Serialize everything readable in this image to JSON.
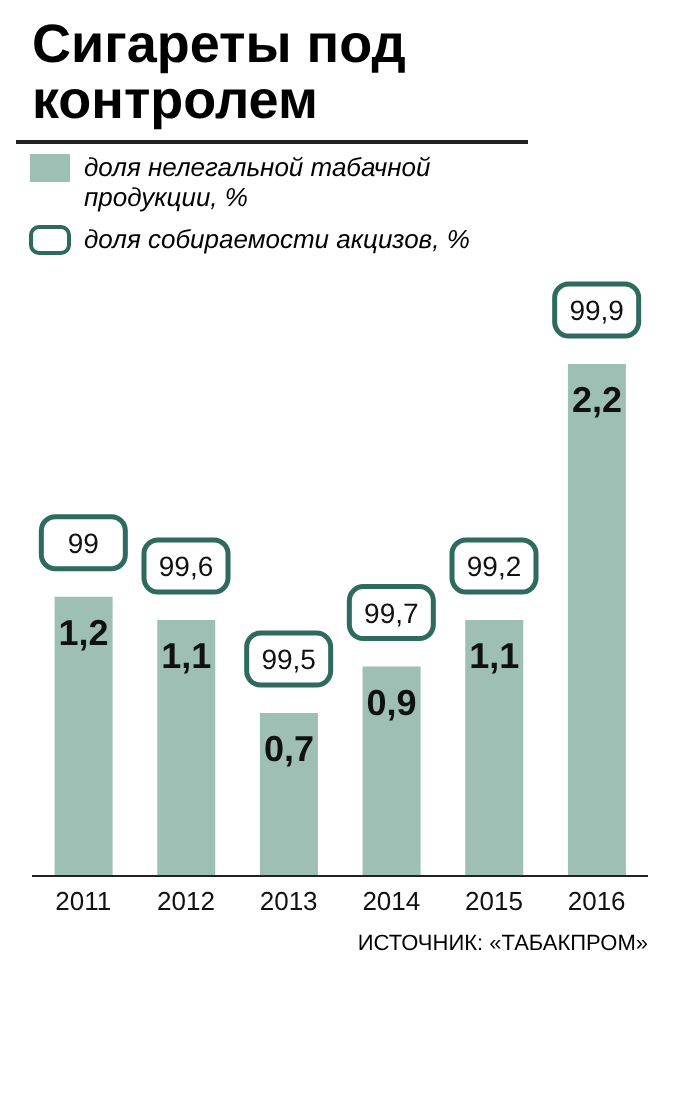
{
  "chart_data": {
    "type": "bar",
    "title": "Сигареты под контролем",
    "categories": [
      "2011",
      "2012",
      "2013",
      "2014",
      "2015",
      "2016"
    ],
    "series": [
      {
        "name": "доля нелегальной табачной продукции, %",
        "color": "#9dbfb4",
        "values": [
          1.2,
          1.1,
          0.7,
          0.9,
          1.1,
          2.2
        ],
        "value_labels": [
          "1,2",
          "1,1",
          "0,7",
          "0,9",
          "1,1",
          "2,2"
        ]
      }
    ],
    "tick_labels": "x",
    "legend": "top left",
    "annotations": [
      "доля собираемости акцизов, %",
      {
        "text": "99",
        "x": "2011",
        "y": 1.2
      },
      {
        "text": "99,6",
        "x": "2012",
        "y": 1.1
      },
      {
        "text": "99,5",
        "x": "2013",
        "y": 0.7
      },
      {
        "text": "99,7",
        "x": "2014",
        "y": 0.9
      },
      {
        "text": "99,2",
        "x": "2015",
        "y": 1.1
      },
      {
        "text": "99,9",
        "x": "2016",
        "y": 2.2
      },
      "ИСТОЧНИК: «ТАБАКПРОМ»"
    ]
  }
}
